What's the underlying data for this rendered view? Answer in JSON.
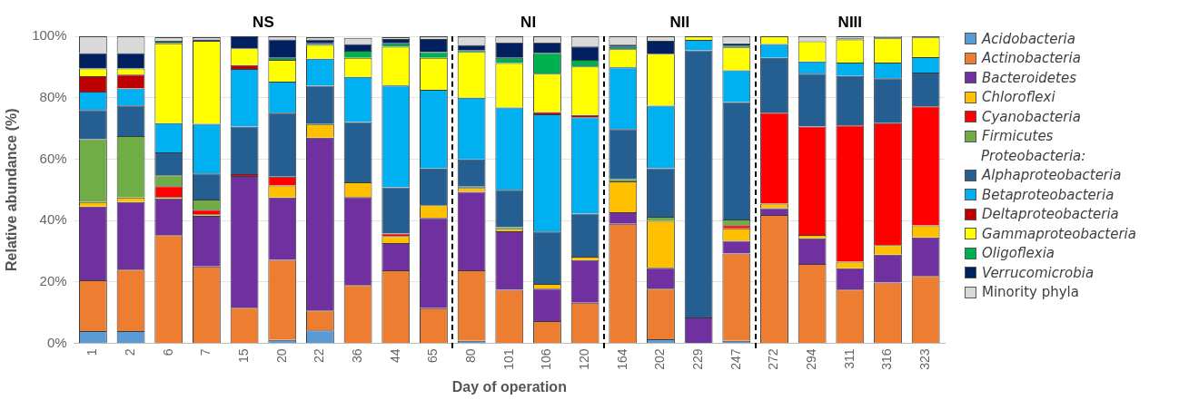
{
  "chart_data": {
    "type": "bar",
    "stacked": true,
    "xlabel": "Day of operation",
    "ylabel": "Relative abundance (%)",
    "categories": [
      "1",
      "2",
      "6",
      "7",
      "15",
      "20",
      "22",
      "36",
      "44",
      "65",
      "80",
      "101",
      "106",
      "120",
      "164",
      "202",
      "229",
      "247",
      "272",
      "294",
      "311",
      "316",
      "323"
    ],
    "ylim": [
      0,
      100
    ],
    "yticks": [
      {
        "value": 0,
        "label": "0%"
      },
      {
        "value": 20,
        "label": "20%"
      },
      {
        "value": 40,
        "label": "40%"
      },
      {
        "value": 60,
        "label": "60%"
      },
      {
        "value": 80,
        "label": "80%"
      },
      {
        "value": 100,
        "label": "100%"
      }
    ],
    "grid": "y",
    "legend": "right",
    "annotations": [
      "NS",
      "NI",
      "NII",
      "NIII",
      "Proteobacteria:"
    ],
    "series": [
      {
        "name": "Acidobacteria",
        "color": "#5b9bd5",
        "values": [
          4,
          4,
          null,
          null,
          0,
          1.1,
          4.2,
          null,
          null,
          0,
          0.8,
          0,
          0,
          0,
          0,
          1.3,
          0,
          0.8,
          0,
          0,
          0,
          0,
          0
        ]
      },
      {
        "name": "Actinobacteria",
        "color": "#ed7d31",
        "values": [
          16.5,
          20,
          35.2,
          25,
          11.6,
          26.1,
          6.5,
          19,
          23.8,
          11.4,
          23,
          17.4,
          7.2,
          13.2,
          38.9,
          16.5,
          0,
          28.4,
          41.8,
          25.8,
          17.5,
          19.8,
          21.9
        ]
      },
      {
        "name": "Bacteroidetes",
        "color": "#7030a0",
        "values": [
          24,
          22,
          12,
          16.5,
          42.9,
          20.3,
          56.3,
          28.6,
          8.8,
          29.4,
          25.5,
          19.1,
          10.6,
          13.9,
          3.8,
          6.8,
          8.4,
          4.2,
          2.2,
          8.4,
          6.9,
          9.1,
          12.6
        ]
      },
      {
        "name": "Chloroflexi",
        "color": "#ffc000",
        "values": [
          1.5,
          1.5,
          0.5,
          0.5,
          0,
          3.9,
          4.4,
          4.8,
          2.3,
          4.2,
          1.3,
          0.8,
          1.5,
          1.1,
          10,
          15.3,
          0,
          4,
          1.5,
          1.1,
          2.2,
          3.1,
          3.9
        ]
      },
      {
        "name": "Cyanobacteria",
        "color": "#ff0000",
        "values": [
          0,
          0,
          3.5,
          1.5,
          0.6,
          2.9,
          0,
          0,
          0.8,
          0,
          0,
          0,
          0,
          0,
          0,
          0,
          0,
          1.1,
          29.6,
          35.3,
          44.4,
          39.7,
          38.8
        ]
      },
      {
        "name": "Firmicutes",
        "color": "#70ad47",
        "values": [
          20.5,
          20,
          3.5,
          3.3,
          0,
          0,
          0,
          0,
          0,
          0,
          0.4,
          0.5,
          0,
          0,
          0.8,
          1.3,
          0,
          1.8,
          0,
          0,
          0,
          0,
          0
        ]
      },
      {
        "name": "Alphaproteobacteria",
        "color": "#255e91",
        "values": [
          9.5,
          10,
          7.5,
          8.5,
          15.5,
          20.8,
          12.5,
          19.7,
          15.1,
          11.9,
          8.9,
          12.2,
          17.1,
          14,
          16.3,
          15.8,
          87,
          38.3,
          17.9,
          17.2,
          16.1,
          14.6,
          11
        ]
      },
      {
        "name": "Betaproteobacteria",
        "color": "#00b0f0",
        "values": [
          6,
          5.5,
          9.5,
          16.2,
          18.8,
          10.1,
          8.8,
          14.7,
          33.2,
          25.7,
          20.1,
          26.8,
          38.2,
          31.4,
          20.1,
          20.4,
          3.4,
          10.3,
          4.5,
          4,
          4.3,
          5.1,
          5
        ]
      },
      {
        "name": "Deltaproteobacteria",
        "color": "#c00000",
        "values": [
          5,
          4.5,
          0,
          0,
          1.2,
          0,
          null,
          0,
          0,
          0,
          0,
          0,
          0.7,
          0.8,
          0,
          0,
          0,
          0,
          0,
          0,
          0,
          0,
          0
        ]
      },
      {
        "name": "Gammaproteobacteria",
        "color": "#ffff00",
        "values": [
          2.5,
          2,
          26,
          27,
          5.5,
          7.1,
          4.5,
          6.2,
          12.6,
          10.4,
          14.9,
          14.5,
          12.5,
          15.8,
          5.9,
          16.9,
          1.2,
          7.5,
          2.5,
          6.6,
          7.6,
          7.9,
          6.4
        ]
      },
      {
        "name": "Oligoflexia",
        "color": "#00b050",
        "values": [
          0,
          0,
          0.5,
          0,
          0,
          0.7,
          0.5,
          2.3,
          1.1,
          1.8,
          0.6,
          1.7,
          6.8,
          2.1,
          0.7,
          0,
          0,
          0.6,
          0,
          0,
          0.3,
          0.4,
          0
        ]
      },
      {
        "name": "Verrucomicrobia",
        "color": "#002060",
        "values": [
          5,
          5,
          0.3,
          0.5,
          3.9,
          6,
          1.3,
          2.2,
          1.4,
          4.3,
          1.7,
          5,
          3.4,
          4.4,
          0.8,
          4.2,
          0,
          0.7,
          0,
          0,
          0,
          0,
          0.4
        ]
      },
      {
        "name": "Minority phyla",
        "color": "#d9d9d9",
        "values": [
          5.5,
          5.5,
          1.2,
          0.7,
          0,
          1,
          0.7,
          2,
          0.6,
          0.9,
          2.8,
          2,
          2,
          3.3,
          2.7,
          1.5,
          0,
          2.3,
          0,
          1.6,
          0.7,
          0.3,
          0
        ]
      }
    ]
  }
}
